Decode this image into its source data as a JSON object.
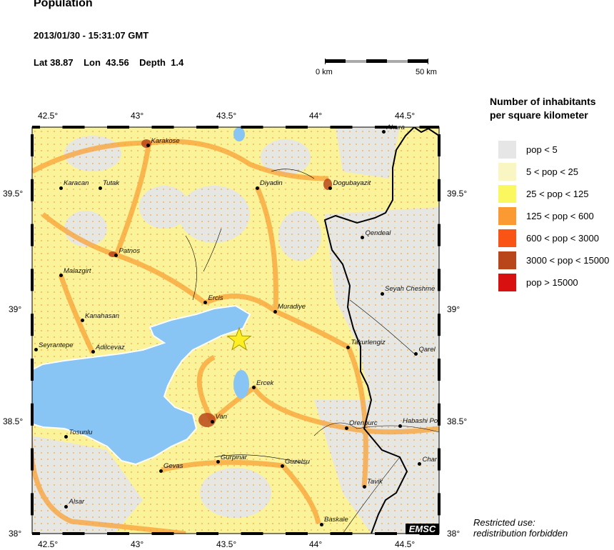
{
  "header": {
    "title": "Population",
    "datetime": "2013/01/30 - 15:31:07 GMT",
    "lat_label": "Lat 38.87",
    "lon_label": "Lon  43.56",
    "depth_label": "Depth  1.4"
  },
  "scale_bar": {
    "start_label": "0 km",
    "end_label": "50 km"
  },
  "map": {
    "lon_range": [
      42.4,
      44.68
    ],
    "lat_range": [
      38.0,
      39.82
    ],
    "lon_ticks": [
      "42.5°",
      "43°",
      "43.5°",
      "44°",
      "44.5°"
    ],
    "lat_ticks": [
      "39.5°",
      "39°",
      "38.5°",
      "38°"
    ],
    "epicenter": {
      "lat": 38.87,
      "lon": 43.56,
      "icon": "star-icon",
      "color": "#ffee22"
    },
    "water_color": "#88c4f4",
    "cities": [
      {
        "name": "Karakose",
        "lon": 43.05,
        "lat": 39.73
      },
      {
        "name": "Karacan",
        "lon": 42.56,
        "lat": 39.54
      },
      {
        "name": "Tutak",
        "lon": 42.78,
        "lat": 39.54
      },
      {
        "name": "Diyadin",
        "lon": 43.66,
        "lat": 39.54
      },
      {
        "name": "Dogubayazit",
        "lon": 44.07,
        "lat": 39.54
      },
      {
        "name": "Ahura",
        "lon": 44.37,
        "lat": 39.79
      },
      {
        "name": "Qendeal",
        "lon": 44.25,
        "lat": 39.32
      },
      {
        "name": "Patnos",
        "lon": 42.87,
        "lat": 39.24
      },
      {
        "name": "Malazgirt",
        "lon": 42.56,
        "lat": 39.15
      },
      {
        "name": "Seyah Cheshme",
        "lon": 44.36,
        "lat": 39.07
      },
      {
        "name": "Ercis",
        "lon": 43.37,
        "lat": 39.03
      },
      {
        "name": "Muradiye",
        "lon": 43.76,
        "lat": 38.99
      },
      {
        "name": "Kanahasan",
        "lon": 42.68,
        "lat": 38.95
      },
      {
        "name": "Takurlengiz",
        "lon": 44.17,
        "lat": 38.83
      },
      {
        "name": "Seyrantepe",
        "lon": 42.42,
        "lat": 38.82
      },
      {
        "name": "Adilcevaz",
        "lon": 42.74,
        "lat": 38.81
      },
      {
        "name": "Qarel",
        "lon": 44.55,
        "lat": 38.8
      },
      {
        "name": "Ercek",
        "lon": 43.64,
        "lat": 38.65
      },
      {
        "name": "Van",
        "lon": 43.41,
        "lat": 38.5
      },
      {
        "name": "Orenburc",
        "lon": 44.16,
        "lat": 38.47
      },
      {
        "name": "Habashi Po",
        "lon": 44.46,
        "lat": 38.48
      },
      {
        "name": "Tosunlu",
        "lon": 42.59,
        "lat": 38.43
      },
      {
        "name": "Char",
        "lon": 44.57,
        "lat": 38.31
      },
      {
        "name": "Gurpinar",
        "lon": 43.44,
        "lat": 38.32
      },
      {
        "name": "Guzelsu",
        "lon": 43.8,
        "lat": 38.3
      },
      {
        "name": "Gevas",
        "lon": 43.12,
        "lat": 38.28
      },
      {
        "name": "Tavik",
        "lon": 44.26,
        "lat": 38.21
      },
      {
        "name": "Alsar",
        "lon": 42.59,
        "lat": 38.12
      },
      {
        "name": "Baskale",
        "lon": 44.02,
        "lat": 38.04
      }
    ],
    "watermark": "EMSC"
  },
  "legend": {
    "title_line1": "Number of inhabitants",
    "title_line2": "per square kilometer",
    "items": [
      {
        "label": "pop < 5",
        "color": "#e6e6e6"
      },
      {
        "label": "5 < pop < 25",
        "color": "#faf6c4"
      },
      {
        "label": "25 < pop < 125",
        "color": "#fbf75e"
      },
      {
        "label": "125 < pop < 600",
        "color": "#fb9a32"
      },
      {
        "label": "600 < pop < 3000",
        "color": "#fa5414"
      },
      {
        "label": "3000 < pop < 15000",
        "color": "#b8461a"
      },
      {
        "label": "pop > 15000",
        "color": "#d81010"
      }
    ]
  },
  "footer": {
    "restricted_line1": "Restricted use:",
    "restricted_line2": "redistribution forbidden"
  }
}
